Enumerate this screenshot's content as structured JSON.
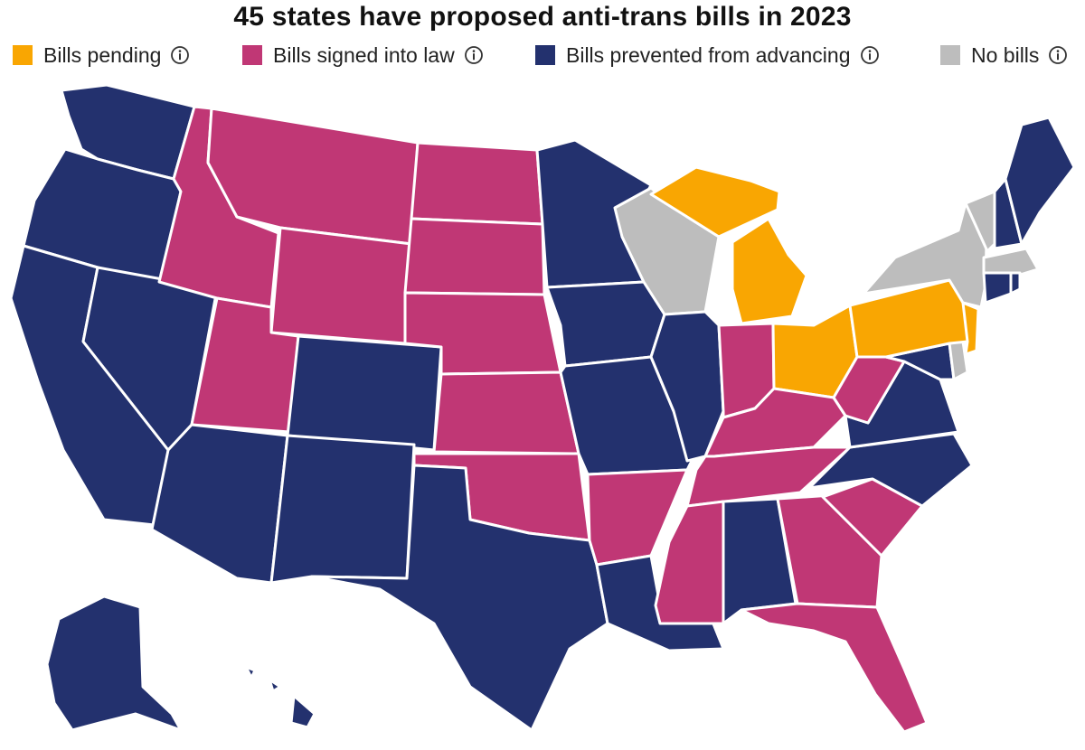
{
  "title": "45 states have proposed anti-trans bills in 2023",
  "legend": [
    {
      "key": "pending",
      "label": "Bills pending",
      "color": "#F9A602",
      "icon": "info-icon"
    },
    {
      "key": "signed",
      "label": "Bills signed into law",
      "color": "#C03775",
      "icon": "info-icon"
    },
    {
      "key": "prevented",
      "label": "Bills prevented from advancing",
      "color": "#23316E",
      "icon": "info-icon"
    },
    {
      "key": "none",
      "label": "No bills",
      "color": "#BDBDBD",
      "icon": "info-icon"
    }
  ],
  "states": {
    "WA": "prevented",
    "OR": "prevented",
    "CA": "prevented",
    "NV": "prevented",
    "ID": "signed",
    "MT": "signed",
    "WY": "signed",
    "UT": "signed",
    "AZ": "prevented",
    "CO": "prevented",
    "NM": "prevented",
    "ND": "signed",
    "SD": "signed",
    "NE": "signed",
    "KS": "signed",
    "OK": "signed",
    "TX": "prevented",
    "MN": "prevented",
    "IA": "prevented",
    "MO": "prevented",
    "AR": "signed",
    "LA": "prevented",
    "WI": "none",
    "IL": "prevented",
    "MI": "pending",
    "IN": "signed",
    "OH": "pending",
    "KY": "signed",
    "TN": "signed",
    "MS": "signed",
    "AL": "prevented",
    "GA": "signed",
    "FL": "signed",
    "SC": "signed",
    "NC": "prevented",
    "VA": "prevented",
    "WV": "signed",
    "MD": "prevented",
    "DE": "none",
    "PA": "pending",
    "NJ": "pending",
    "NY": "none",
    "CT": "prevented",
    "RI": "prevented",
    "MA": "none",
    "VT": "none",
    "NH": "prevented",
    "ME": "prevented",
    "AK": "prevented",
    "HI": "prevented"
  }
}
